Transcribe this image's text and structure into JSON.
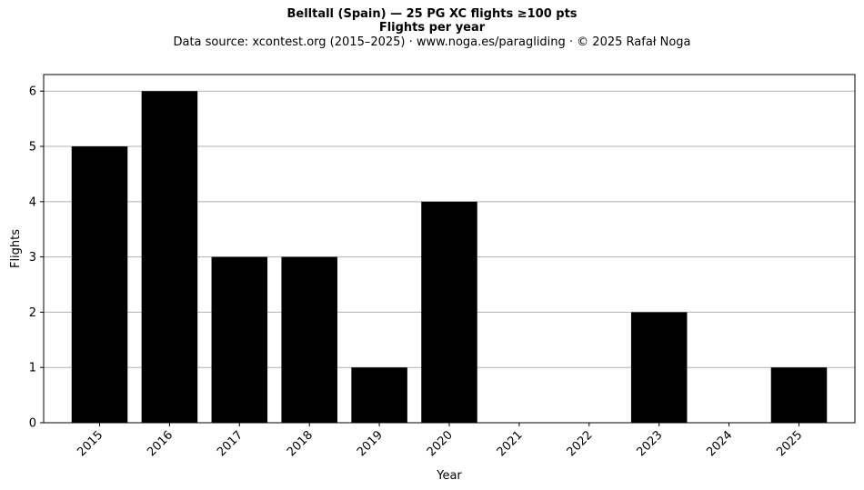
{
  "chart_data": {
    "type": "bar",
    "title": "Belltall (Spain)  —  25 PG XC flights ≥100 pts",
    "subtitle": "Flights per year",
    "source_note": "Data source: xcontest.org (2015–2025)  ·  www.noga.es/paragliding  ·  © 2025 Rafał Noga",
    "xlabel": "Year",
    "ylabel": "Flights",
    "categories": [
      "2015",
      "2016",
      "2017",
      "2018",
      "2019",
      "2020",
      "2021",
      "2022",
      "2023",
      "2024",
      "2025"
    ],
    "values": [
      5,
      6,
      3,
      3,
      1,
      4,
      0,
      0,
      2,
      0,
      1
    ],
    "ylim": [
      0,
      6.3
    ],
    "yticks": [
      0,
      1,
      2,
      3,
      4,
      5,
      6
    ],
    "grid": "y-major",
    "bar_color": "#000000",
    "grid_color": "#b0b0b0"
  }
}
